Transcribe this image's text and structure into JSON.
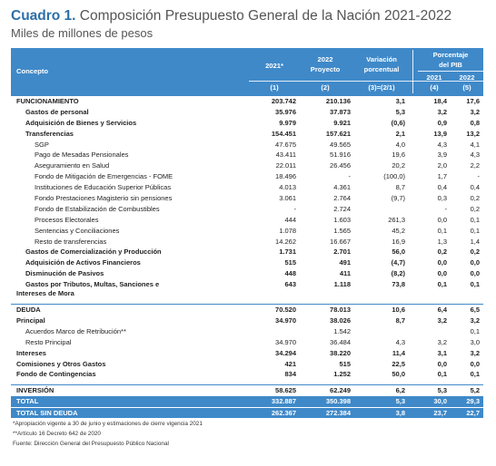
{
  "title_bold": "Cuadro 1.",
  "title_rest": "Composición Presupuesto General de la Nación 2021-2022",
  "subtitle": "Miles de millones de pesos",
  "header": {
    "concepto": "Concepto",
    "col1": "2021*",
    "col2a": "2022",
    "col2b": "Proyecto",
    "col3a": "Variación",
    "col3b": "porcentual",
    "pib_a": "Porcentaje",
    "pib_b": "del PIB",
    "pib_2021": "2021",
    "pib_2022": "2022",
    "idx1": "(1)",
    "idx2": "(2)",
    "idx3": "(3)=(2/1)",
    "idx4": "(4)",
    "idx5": "(5)"
  },
  "rows": [
    {
      "label": "FUNCIONAMIENTO",
      "v1": "203.742",
      "v2": "210.136",
      "v3": "3,1",
      "v4": "18,4",
      "v5": "17,6",
      "style": "b sect",
      "lv": 0
    },
    {
      "label": "Gastos de personal",
      "v1": "35.976",
      "v2": "37.873",
      "v3": "5,3",
      "v4": "3,2",
      "v5": "3,2",
      "style": "b",
      "lv": 1
    },
    {
      "label": "Adquisición de Bienes y Servicios",
      "v1": "9.979",
      "v2": "9.921",
      "v3": "(0,6)",
      "v4": "0,9",
      "v5": "0,8",
      "style": "b",
      "lv": 1
    },
    {
      "label": "Transferencias",
      "v1": "154.451",
      "v2": "157.621",
      "v3": "2,1",
      "v4": "13,9",
      "v5": "13,2",
      "style": "b",
      "lv": 1
    },
    {
      "label": "SGP",
      "v1": "47.675",
      "v2": "49.565",
      "v3": "4,0",
      "v4": "4,3",
      "v5": "4,1",
      "style": "",
      "lv": 2
    },
    {
      "label": "Pago de Mesadas Pensionales",
      "v1": "43.411",
      "v2": "51.916",
      "v3": "19,6",
      "v4": "3,9",
      "v5": "4,3",
      "style": "",
      "lv": 2
    },
    {
      "label": "Aseguramiento en Salud",
      "v1": "22.011",
      "v2": "26.456",
      "v3": "20,2",
      "v4": "2,0",
      "v5": "2,2",
      "style": "",
      "lv": 2
    },
    {
      "label": "Fondo de Mitigación de Emergencias - FOME",
      "v1": "18.496",
      "v2": "-",
      "v3": "(100,0)",
      "v4": "1,7",
      "v5": "-",
      "style": "",
      "lv": 2
    },
    {
      "label": "Instituciones de Educación Superior Públicas",
      "v1": "4.013",
      "v2": "4.361",
      "v3": "8,7",
      "v4": "0,4",
      "v5": "0,4",
      "style": "",
      "lv": 2
    },
    {
      "label": "Fondo Prestaciones Magisterio sin pensiones",
      "v1": "3.061",
      "v2": "2.764",
      "v3": "(9,7)",
      "v4": "0,3",
      "v5": "0,2",
      "style": "",
      "lv": 2
    },
    {
      "label": "Fondo de Estabilización de Combustibles",
      "v1": "-",
      "v2": "2.724",
      "v3": "",
      "v4": "-",
      "v5": "0,2",
      "style": "",
      "lv": 2
    },
    {
      "label": "Procesos Electorales",
      "v1": "444",
      "v2": "1.603",
      "v3": "261,3",
      "v4": "0,0",
      "v5": "0,1",
      "style": "",
      "lv": 2
    },
    {
      "label": "Sentencias y Conciliaciones",
      "v1": "1.078",
      "v2": "1.565",
      "v3": "45,2",
      "v4": "0,1",
      "v5": "0,1",
      "style": "",
      "lv": 2
    },
    {
      "label": "Resto de transferencias",
      "v1": "14.262",
      "v2": "16.667",
      "v3": "16,9",
      "v4": "1,3",
      "v5": "1,4",
      "style": "",
      "lv": 2
    },
    {
      "label": "Gastos de Comercialización y Producción",
      "v1": "1.731",
      "v2": "2.701",
      "v3": "56,0",
      "v4": "0,2",
      "v5": "0,2",
      "style": "b",
      "lv": 1
    },
    {
      "label": "Adquisición de Activos Financieros",
      "v1": "515",
      "v2": "491",
      "v3": "(4,7)",
      "v4": "0,0",
      "v5": "0,0",
      "style": "b",
      "lv": 1
    },
    {
      "label": "Disminución de Pasivos",
      "v1": "448",
      "v2": "411",
      "v3": "(8,2)",
      "v4": "0,0",
      "v5": "0,0",
      "style": "b",
      "lv": 1
    },
    {
      "label": "Gastos por Tributos, Multas, Sanciones e",
      "label2": "Intereses de Mora",
      "v1": "643",
      "v2": "1.118",
      "v3": "73,8",
      "v4": "0,1",
      "v5": "0,1",
      "style": "b tall",
      "lv": 1
    },
    {
      "label": "DEUDA",
      "v1": "70.520",
      "v2": "78.013",
      "v3": "10,6",
      "v4": "6,4",
      "v5": "6,5",
      "style": "b sect",
      "lv": 0
    },
    {
      "label": "Principal",
      "v1": "34.970",
      "v2": "38.026",
      "v3": "8,7",
      "v4": "3,2",
      "v5": "3,2",
      "style": "b",
      "lv": 0
    },
    {
      "label": "Acuerdos Marco de Retribución**",
      "v1": "",
      "v2": "1.542",
      "v3": "",
      "v4": "",
      "v5": "0,1",
      "style": "",
      "lv": 1
    },
    {
      "label": "Resto Principal",
      "v1": "34.970",
      "v2": "36.484",
      "v3": "4,3",
      "v4": "3,2",
      "v5": "3,0",
      "style": "",
      "lv": 1
    },
    {
      "label": "Intereses",
      "v1": "34.294",
      "v2": "38.220",
      "v3": "11,4",
      "v4": "3,1",
      "v5": "3,2",
      "style": "b",
      "lv": 0
    },
    {
      "label": "Comisiones y Otros Gastos",
      "v1": "421",
      "v2": "515",
      "v3": "22,5",
      "v4": "0,0",
      "v5": "0,0",
      "style": "b",
      "lv": 0
    },
    {
      "label": "Fondo de Contingencias",
      "v1": "834",
      "v2": "1.252",
      "v3": "50,0",
      "v4": "0,1",
      "v5": "0,1",
      "style": "b",
      "lv": 0
    },
    {
      "label": "INVERSIÓN",
      "v1": "58.625",
      "v2": "62.249",
      "v3": "6,2",
      "v4": "5,3",
      "v5": "5,2",
      "style": "b sect",
      "lv": 0
    }
  ],
  "totals": [
    {
      "label": "TOTAL",
      "v1": "332.887",
      "v2": "350.398",
      "v3": "5,3",
      "v4": "30,0",
      "v5": "29,3"
    },
    {
      "label": "TOTAL SIN DEUDA",
      "v1": "262.367",
      "v2": "272.384",
      "v3": "3,8",
      "v4": "23,7",
      "v5": "22,7"
    }
  ],
  "notes": [
    "*Apropiación vigente a 30 de junio y estimaciones de cierre vigencia 2021",
    "**Artículo 16 Decreto 642 de 2020",
    "Fuente: Dirección General del Presupuesto Público Nacional"
  ],
  "colors": {
    "header_blue": "#3f89c9",
    "title_blue": "#2d6fa8"
  }
}
